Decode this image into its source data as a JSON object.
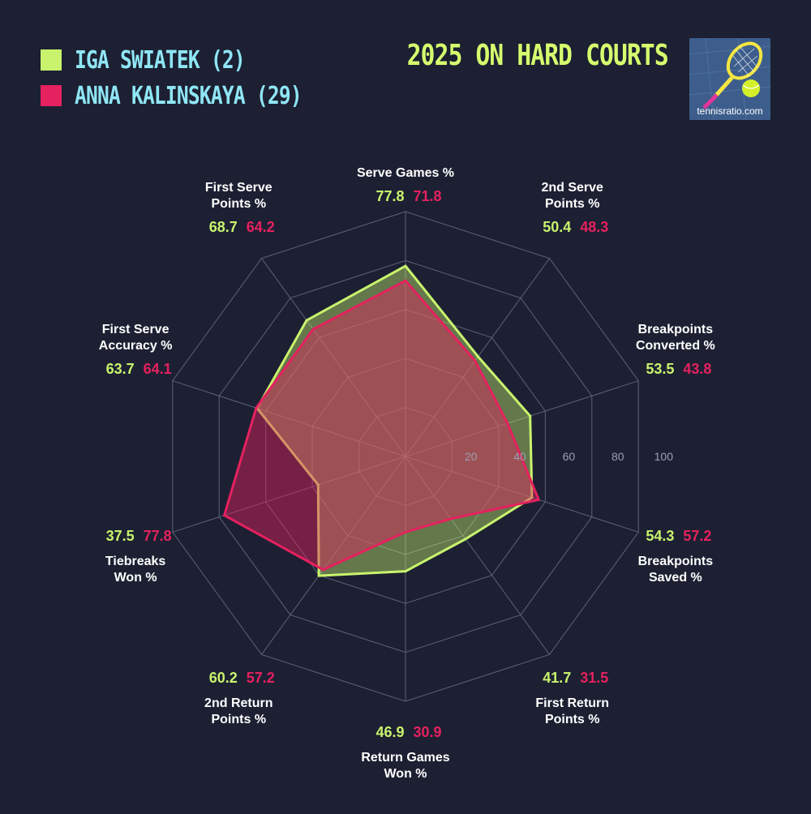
{
  "legend": [
    {
      "label": "IGA SWIATEK (2)",
      "color": "#c9f36d"
    },
    {
      "label": "ANNA KALINSKAYA (29)",
      "color": "#e5215f"
    }
  ],
  "title": "2025 ON HARD COURTS",
  "logo_text": "tennisratio.com",
  "chart_data": {
    "type": "radar",
    "axes": [
      {
        "label": [
          "Serve Games %"
        ]
      },
      {
        "label": [
          "2nd Serve",
          "Points %"
        ]
      },
      {
        "label": [
          "Breakpoints",
          "Converted %"
        ]
      },
      {
        "label": [
          "Breakpoints",
          "Saved %"
        ]
      },
      {
        "label": [
          "First Return",
          "Points %"
        ]
      },
      {
        "label": [
          "Return Games",
          "Won %"
        ]
      },
      {
        "label": [
          "2nd Return",
          "Points %"
        ]
      },
      {
        "label": [
          "Tiebreaks",
          "Won %"
        ]
      },
      {
        "label": [
          "First Serve",
          "Accuracy %"
        ]
      },
      {
        "label": [
          "First Serve",
          "Points %"
        ]
      }
    ],
    "range": [
      0,
      100
    ],
    "ticks": [
      20,
      40,
      60,
      80,
      100
    ],
    "series": [
      {
        "name": "IGA SWIATEK (2)",
        "color": "#c9f36d",
        "values": [
          77.8,
          50.4,
          53.5,
          54.3,
          41.7,
          46.9,
          60.2,
          37.5,
          63.7,
          68.7
        ]
      },
      {
        "name": "ANNA KALINSKAYA (29)",
        "color": "#e5215f",
        "values": [
          71.8,
          48.3,
          43.8,
          57.2,
          31.5,
          30.9,
          57.2,
          77.8,
          64.1,
          64.2
        ]
      }
    ]
  }
}
